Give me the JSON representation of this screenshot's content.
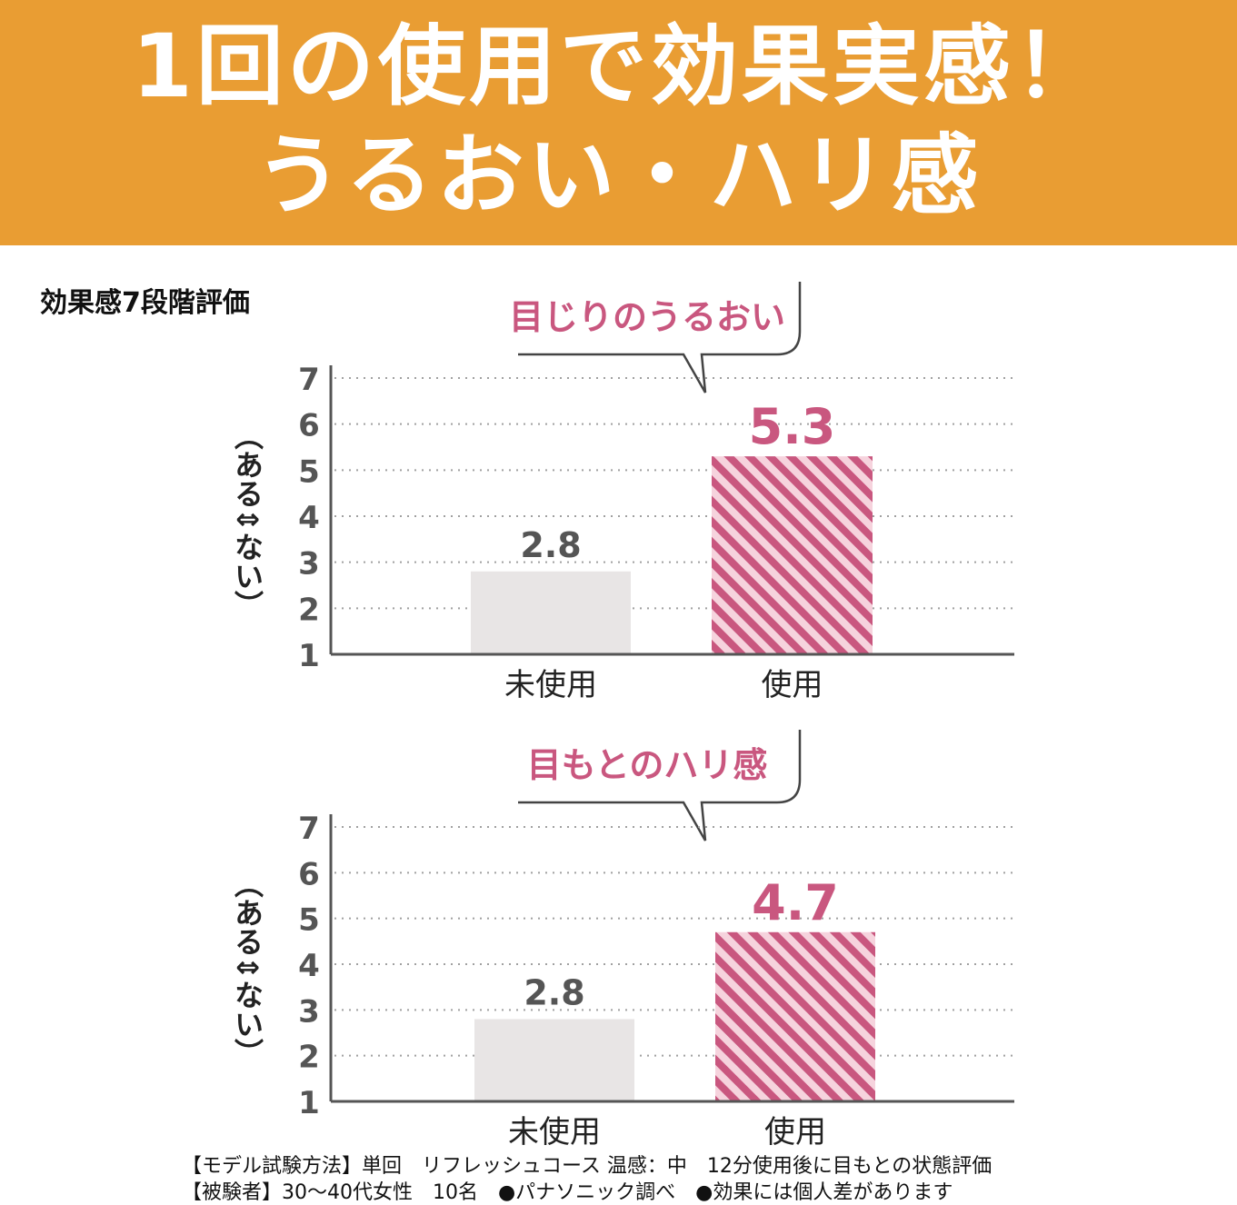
{
  "banner": {
    "line1": "1回の使用で効果実感！",
    "line2": "うるおい・ハリ感",
    "color": "#e99d33"
  },
  "section_title": "効果感7段階評価",
  "colors": {
    "pink": "#c9577f",
    "pink_light": "#f6d3dd",
    "gray_bar": "#e8e5e5",
    "axis": "#555555",
    "grid": "#a0a0a0"
  },
  "chart_data": [
    {
      "type": "bar",
      "title": "目じりのうるおい",
      "ylabel": "（ある⇕ない）",
      "categories": [
        "未使用",
        "使用"
      ],
      "values": [
        2.8,
        5.3
      ],
      "value_labels": [
        "2.8",
        "5.3"
      ],
      "ylim": [
        1,
        7
      ],
      "yticks": [
        "1",
        "2",
        "3",
        "4",
        "5",
        "6",
        "7"
      ],
      "grid": true
    },
    {
      "type": "bar",
      "title": "目もとのハリ感",
      "ylabel": "（ある⇕ない）",
      "categories": [
        "未使用",
        "使用"
      ],
      "values": [
        2.8,
        4.7
      ],
      "value_labels": [
        "2.8",
        "4.7"
      ],
      "ylim": [
        1,
        7
      ],
      "yticks": [
        "1",
        "2",
        "3",
        "4",
        "5",
        "6",
        "7"
      ],
      "grid": true
    }
  ],
  "footnotes": [
    "【モデル試験方法】単回　リフレッシュコース 温感：中　12分使用後に目もとの状態評価",
    "【被験者】30～40代女性　10名　●パナソニック調べ　●効果には個人差があります"
  ]
}
